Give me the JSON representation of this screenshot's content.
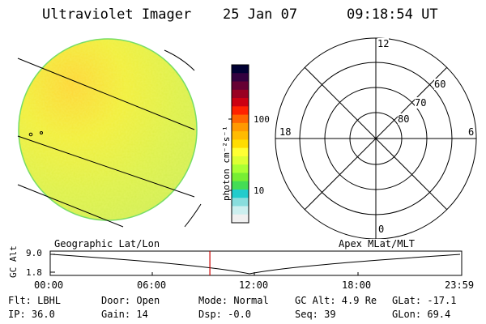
{
  "header": {
    "instrument": "Ultraviolet Imager",
    "date": "25 Jan 07",
    "time": "09:18:54 UT"
  },
  "colorbar": {
    "unit_label": "photon cm⁻²s⁻¹",
    "ticks": [
      "100",
      "10"
    ],
    "colors": [
      "#000033",
      "#33003f",
      "#660033",
      "#990022",
      "#cc0011",
      "#ff2200",
      "#ff6600",
      "#ff9900",
      "#ffbb00",
      "#ffdd00",
      "#ffff33",
      "#ddff33",
      "#aaff33",
      "#77ee33",
      "#44dd55",
      "#22cccc",
      "#88dddd",
      "#ccefef",
      "#f0f0f0"
    ]
  },
  "polar_plot": {
    "mlt_labels": {
      "top": "12",
      "right": "6",
      "left": "18",
      "bottom": "0"
    },
    "lat_labels": [
      "60",
      "70",
      "80"
    ]
  },
  "timeline": {
    "left_caption": "Geographic Lat/Lon",
    "right_caption": "Apex MLat/MLT",
    "y_axis_label": "GC Alt",
    "y_ticks": [
      "9.0",
      "1.8"
    ],
    "x_ticks": [
      "00:00",
      "06:00",
      "12:00",
      "18:00",
      "23:59"
    ],
    "current_time_fraction": 0.388
  },
  "info": {
    "flt": "Flt: LBHL",
    "ip": "IP: 36.0",
    "door": "Door: Open",
    "gain": "Gain: 14",
    "mode": "Mode: Normal",
    "dsp": "Dsp:  -0.0",
    "gc_alt": "GC Alt: 4.9 Re",
    "seq": "Seq: 39",
    "glat": "GLat: -17.1",
    "glon": "GLon:  69.4"
  }
}
